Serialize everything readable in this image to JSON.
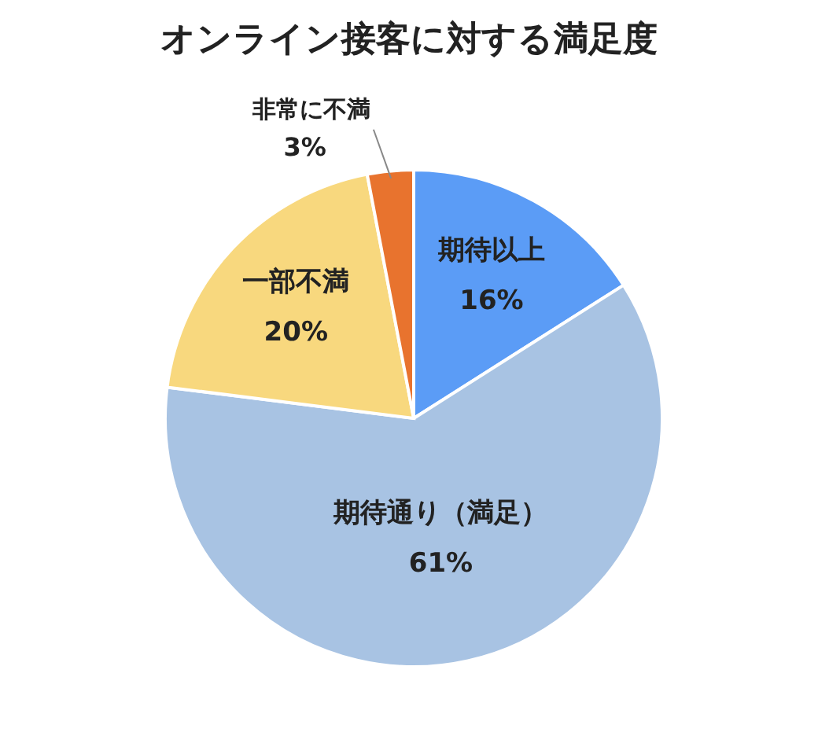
{
  "chart_data": {
    "type": "pie",
    "title": "オンライン接客に対する満足度",
    "categories": [
      "期待以上",
      "期待通り（満足）",
      "一部不満",
      "非常に不満"
    ],
    "values": [
      16,
      61,
      20,
      3
    ],
    "value_labels": [
      "16%",
      "61%",
      "20%",
      "3%"
    ],
    "colors": [
      "#5b9cf6",
      "#a8c3e3",
      "#f8d87e",
      "#e8732e"
    ]
  }
}
